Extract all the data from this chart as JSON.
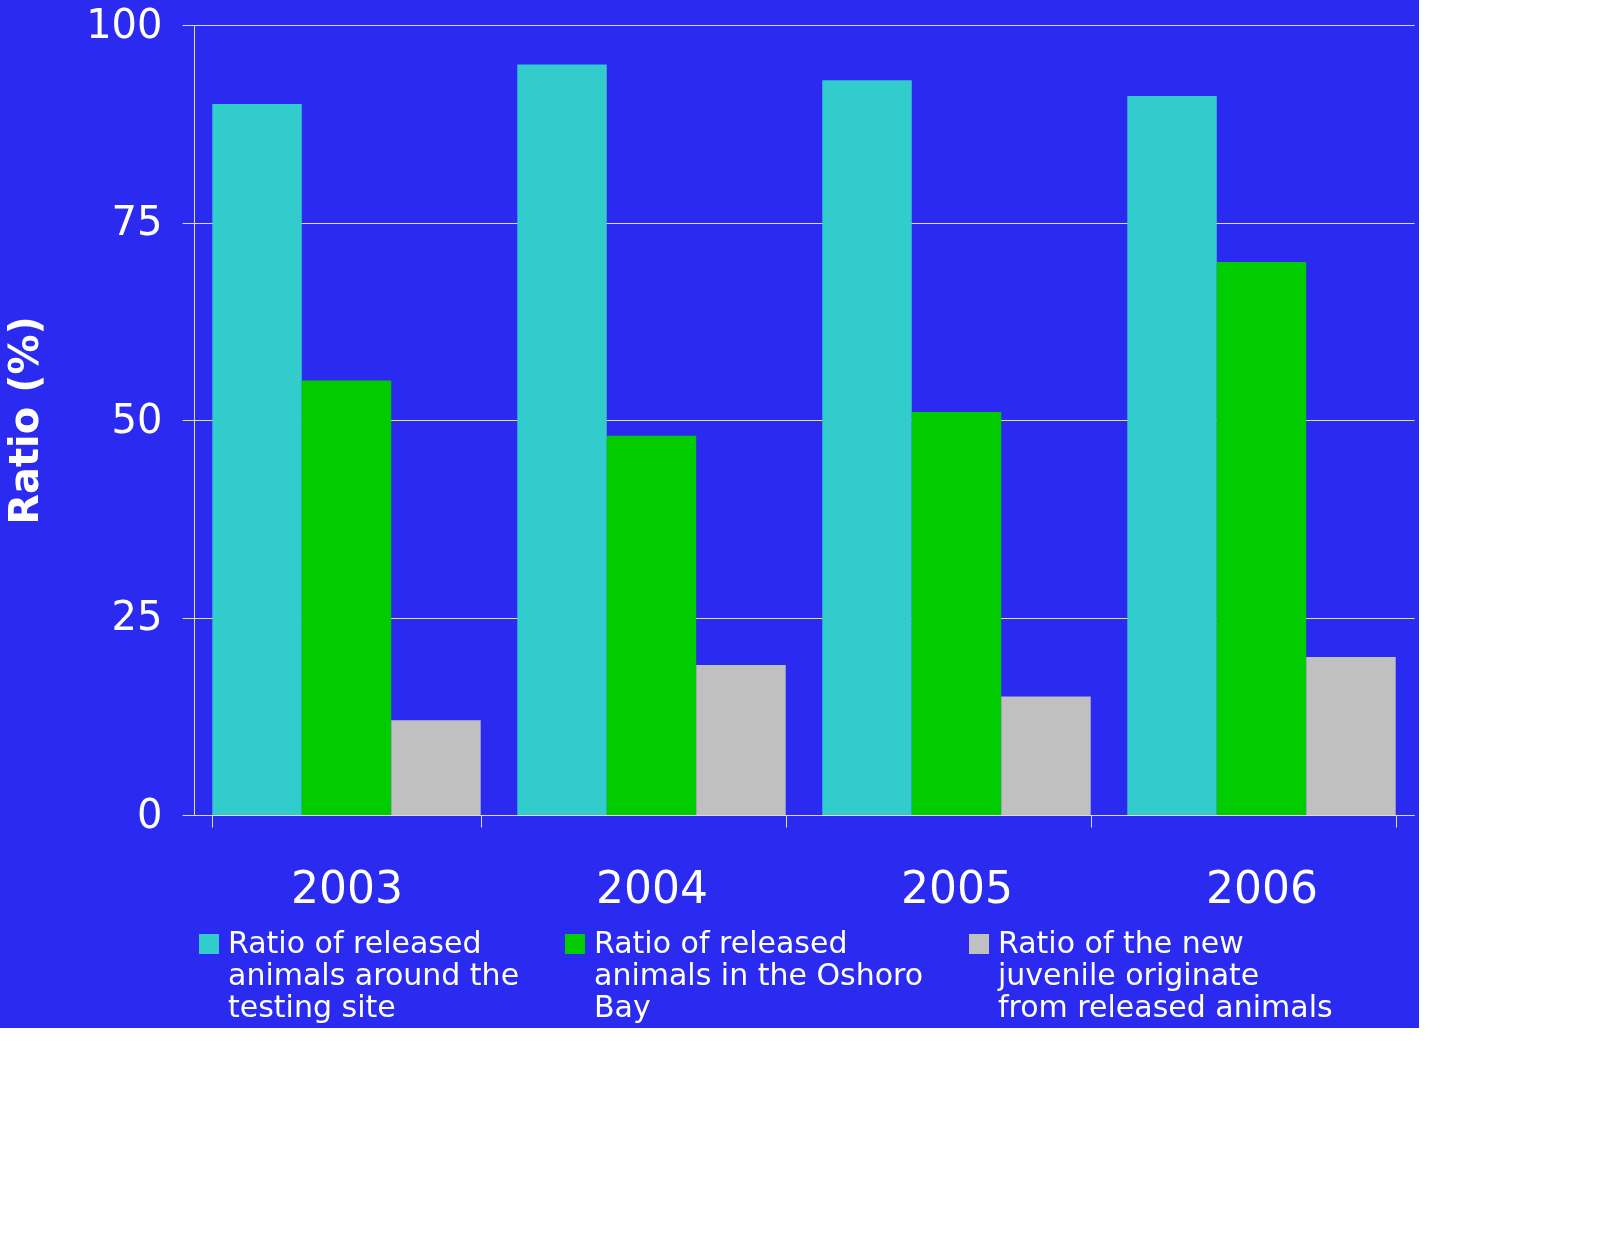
{
  "chart_data": {
    "type": "bar",
    "ylabel": "Ratio (%)",
    "categories": [
      "2003",
      "2004",
      "2005",
      "2006"
    ],
    "series": [
      {
        "name": "Ratio of released animals around the testing site",
        "color": "#33cccc",
        "values": [
          90,
          95,
          93,
          91
        ]
      },
      {
        "name": "Ratio of released animals in the Oshoro Bay",
        "color": "#00cc00",
        "values": [
          55,
          48,
          51,
          70
        ]
      },
      {
        "name": "Ratio of the new juvenile originate from released animals",
        "color": "#c0c0c0",
        "values": [
          12,
          19,
          15,
          20
        ]
      }
    ],
    "ylim": [
      0,
      100
    ],
    "yticks": [
      0,
      25,
      50,
      75,
      100
    ],
    "grid": "y",
    "legend": "bottom"
  }
}
